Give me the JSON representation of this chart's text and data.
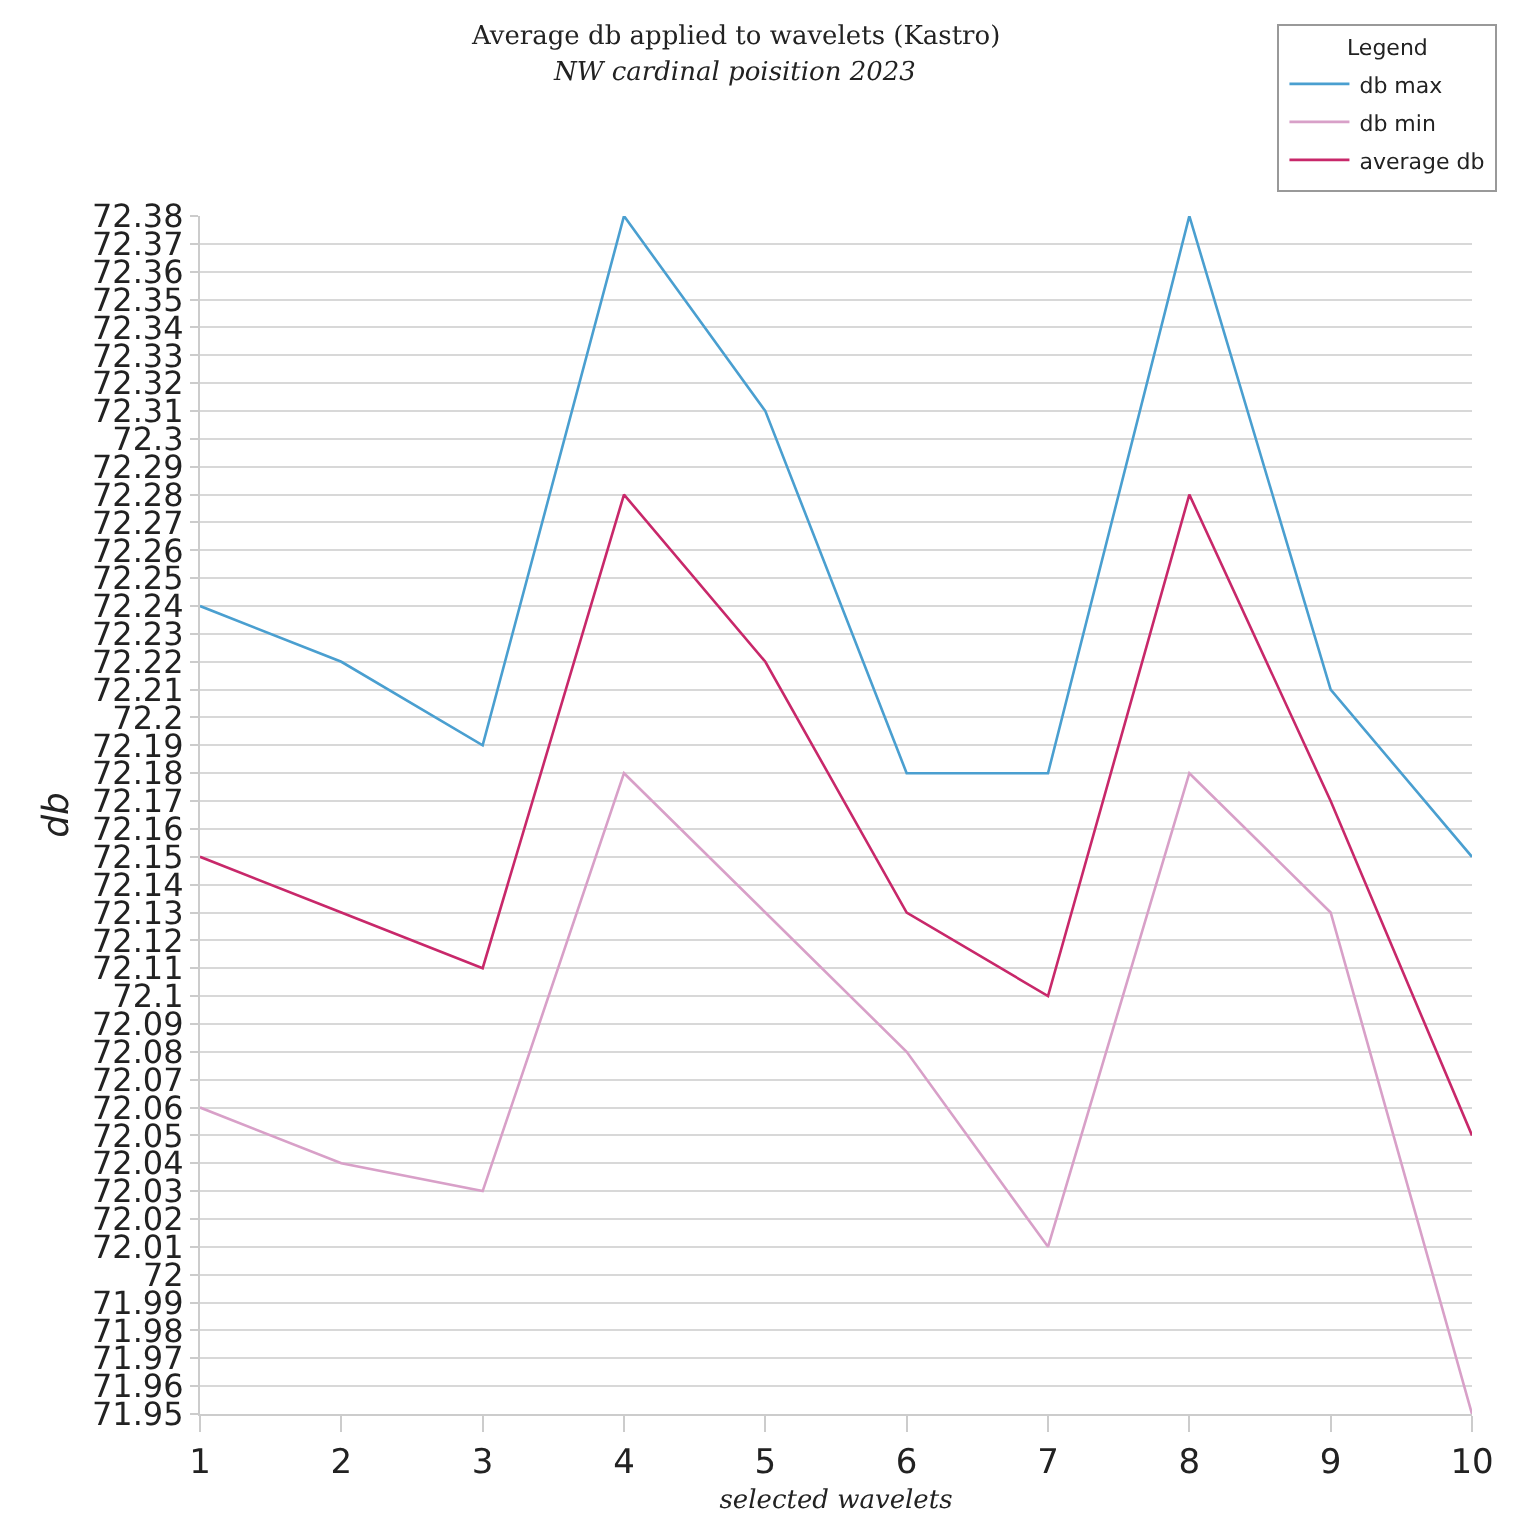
{
  "chart_data": {
    "type": "line",
    "title": "Average db applied to wavelets (Kastro)",
    "subtitle": "NW cardinal poisition 2023",
    "xlabel": "selected wavelets",
    "ylabel": "db",
    "legend_title": "Legend",
    "x": [
      1,
      2,
      3,
      4,
      5,
      6,
      7,
      8,
      9,
      10
    ],
    "series": [
      {
        "name": "db max",
        "color": "#4a9fd0",
        "values": [
          72.24,
          72.22,
          72.19,
          72.38,
          72.31,
          72.18,
          72.18,
          72.38,
          72.21,
          72.15
        ]
      },
      {
        "name": "db min",
        "color": "#d8a0c8",
        "values": [
          72.06,
          72.04,
          72.03,
          72.18,
          72.13,
          72.08,
          72.01,
          72.18,
          72.13,
          71.95
        ]
      },
      {
        "name": "average db",
        "color": "#c8286a",
        "values": [
          72.15,
          72.13,
          72.11,
          72.28,
          72.22,
          72.13,
          72.1,
          72.28,
          72.17,
          72.05
        ]
      }
    ],
    "xlim": [
      1,
      10
    ],
    "xticks": [
      1,
      2,
      3,
      4,
      5,
      6,
      7,
      8,
      9,
      10
    ],
    "ylim": [
      71.95,
      72.38
    ],
    "yticks": [
      71.95,
      71.96,
      71.97,
      71.98,
      71.99,
      72,
      72.01,
      72.02,
      72.03,
      72.04,
      72.05,
      72.06,
      72.07,
      72.08,
      72.09,
      72.1,
      72.11,
      72.12,
      72.13,
      72.14,
      72.15,
      72.16,
      72.17,
      72.18,
      72.19,
      72.2,
      72.21,
      72.22,
      72.23,
      72.24,
      72.25,
      72.26,
      72.27,
      72.28,
      72.29,
      72.3,
      72.31,
      72.32,
      72.33,
      72.34,
      72.35,
      72.36,
      72.37,
      72.38
    ],
    "grid": "y",
    "legend": "top right",
    "marker": "none",
    "line_style": "solid"
  }
}
